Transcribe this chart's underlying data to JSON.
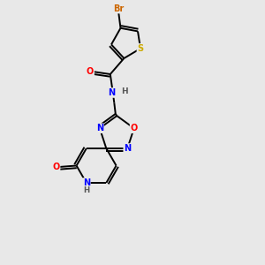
{
  "bg_color": "#e8e8e8",
  "bond_color": "#000000",
  "atom_colors": {
    "Br": "#cc6600",
    "S": "#ccaa00",
    "O": "#ff0000",
    "N": "#0000ff",
    "C": "#000000",
    "H": "#555555"
  },
  "figsize": [
    3.0,
    3.0
  ],
  "dpi": 100,
  "lw": 1.4,
  "fs": 6.5
}
